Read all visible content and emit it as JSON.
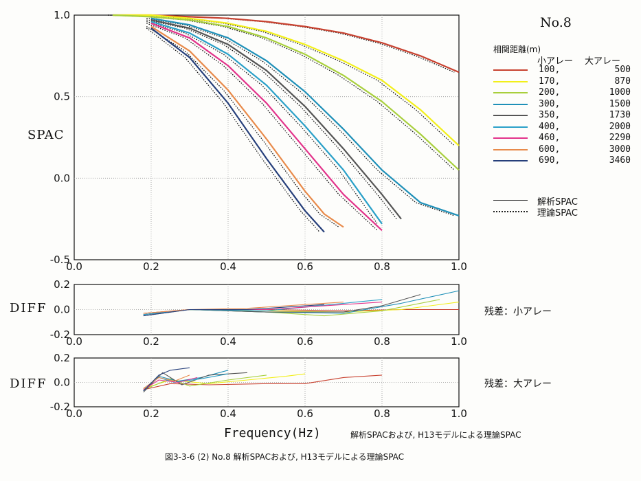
{
  "panel_id": "No.8",
  "legend": {
    "title": "相関距離(m)",
    "col_small": "小アレー",
    "col_large": "大アレー",
    "entries": [
      {
        "small": "100,",
        "large": "500",
        "color": "#c8412f"
      },
      {
        "small": "170,",
        "large": "870",
        "color": "#f2ef1a"
      },
      {
        "small": "200,",
        "large": "1000",
        "color": "#a8cf3c"
      },
      {
        "small": "300,",
        "large": "1500",
        "color": "#1f90b8"
      },
      {
        "small": "350,",
        "large": "1730",
        "color": "#555555"
      },
      {
        "small": "400,",
        "large": "2000",
        "color": "#2aa0c8"
      },
      {
        "small": "460,",
        "large": "2290",
        "color": "#e2328a"
      },
      {
        "small": "600,",
        "large": "3000",
        "color": "#e88a4a"
      },
      {
        "small": "690,",
        "large": "3460",
        "color": "#263f7a"
      }
    ],
    "analysis_label": "解析SPAC",
    "theory_label": "理論SPAC"
  },
  "residual_small_label": "残差：小アレー",
  "residual_large_label": "残差：大アレー",
  "xlabel": "Frequency(Hz)",
  "inline_caption": "解析SPACおよび, H13モデルによる理論SPAC",
  "figure_caption": "図3-3-6 (2) No.8 解析SPACおよび, H13モデルによる理論SPAC",
  "chart_data": [
    {
      "type": "line",
      "ylabel": "SPAC",
      "xlim": [
        0.0,
        1.0
      ],
      "ylim": [
        -0.5,
        1.0
      ],
      "xticks": [
        "0.0",
        "0.2",
        "0.4",
        "0.6",
        "0.8",
        "1.0"
      ],
      "yticks": [
        "-0.5",
        "0.0",
        "0.5",
        "1.0"
      ],
      "grid": "dotted",
      "series": [
        {
          "name": "100, 500",
          "color": "#c8412f",
          "x": [
            0.1,
            0.2,
            0.3,
            0.4,
            0.5,
            0.6,
            0.7,
            0.8,
            0.9,
            1.0
          ],
          "y": [
            1.0,
            1.0,
            0.99,
            0.98,
            0.96,
            0.93,
            0.89,
            0.83,
            0.75,
            0.65
          ]
        },
        {
          "name": "170, 870",
          "color": "#f2ef1a",
          "x": [
            0.1,
            0.2,
            0.3,
            0.4,
            0.5,
            0.6,
            0.7,
            0.8,
            0.9,
            1.0
          ],
          "y": [
            1.0,
            1.0,
            0.98,
            0.95,
            0.9,
            0.82,
            0.72,
            0.6,
            0.42,
            0.2
          ]
        },
        {
          "name": "200, 1000",
          "color": "#a8cf3c",
          "x": [
            0.1,
            0.2,
            0.3,
            0.4,
            0.5,
            0.6,
            0.7,
            0.8,
            0.9,
            1.0
          ],
          "y": [
            1.0,
            0.99,
            0.97,
            0.93,
            0.86,
            0.76,
            0.63,
            0.47,
            0.27,
            0.05
          ]
        },
        {
          "name": "300, 1500",
          "color": "#1f90b8",
          "x": [
            0.2,
            0.3,
            0.4,
            0.5,
            0.6,
            0.7,
            0.8,
            0.9,
            1.0
          ],
          "y": [
            0.98,
            0.94,
            0.86,
            0.72,
            0.53,
            0.3,
            0.05,
            -0.15,
            -0.23
          ]
        },
        {
          "name": "350, 1730",
          "color": "#555555",
          "x": [
            0.2,
            0.3,
            0.4,
            0.5,
            0.6,
            0.7,
            0.8,
            0.85
          ],
          "y": [
            0.97,
            0.92,
            0.82,
            0.66,
            0.44,
            0.18,
            -0.1,
            -0.25
          ]
        },
        {
          "name": "400, 2000",
          "color": "#2aa0c8",
          "x": [
            0.2,
            0.3,
            0.4,
            0.5,
            0.6,
            0.7,
            0.8
          ],
          "y": [
            0.96,
            0.89,
            0.76,
            0.57,
            0.32,
            0.05,
            -0.28
          ]
        },
        {
          "name": "460, 2290",
          "color": "#e2328a",
          "x": [
            0.2,
            0.3,
            0.4,
            0.5,
            0.6,
            0.7,
            0.8
          ],
          "y": [
            0.95,
            0.86,
            0.69,
            0.46,
            0.18,
            -0.1,
            -0.32
          ]
        },
        {
          "name": "600, 3000",
          "color": "#e88a4a",
          "x": [
            0.2,
            0.3,
            0.4,
            0.5,
            0.6,
            0.65,
            0.7
          ],
          "y": [
            0.93,
            0.78,
            0.54,
            0.24,
            -0.08,
            -0.22,
            -0.3
          ]
        },
        {
          "name": "690, 3460",
          "color": "#263f7a",
          "x": [
            0.2,
            0.3,
            0.4,
            0.5,
            0.6,
            0.65
          ],
          "y": [
            0.92,
            0.74,
            0.46,
            0.12,
            -0.2,
            -0.33
          ]
        }
      ]
    },
    {
      "type": "line",
      "ylabel": "DIFF",
      "xlim": [
        0.0,
        1.0
      ],
      "ylim": [
        -0.2,
        0.2
      ],
      "xticks": [
        "0.0",
        "0.2",
        "0.4",
        "0.6",
        "0.8",
        "1.0"
      ],
      "yticks": [
        "-0.2",
        "0.0",
        "0.2"
      ],
      "grid": "dotted",
      "series": [
        {
          "name": "100, 500",
          "color": "#c8412f",
          "x": [
            0.18,
            0.3,
            0.5,
            0.7,
            0.85,
            1.0
          ],
          "y": [
            -0.04,
            0.0,
            0.0,
            -0.01,
            0.0,
            0.0
          ]
        },
        {
          "name": "170, 870",
          "color": "#f2ef1a",
          "x": [
            0.18,
            0.3,
            0.5,
            0.7,
            0.85,
            1.0
          ],
          "y": [
            -0.03,
            0.0,
            -0.01,
            -0.02,
            0.0,
            0.06
          ]
        },
        {
          "name": "200, 1000",
          "color": "#a8cf3c",
          "x": [
            0.18,
            0.3,
            0.5,
            0.65,
            0.8,
            0.95
          ],
          "y": [
            -0.03,
            0.0,
            -0.02,
            -0.05,
            -0.01,
            0.08
          ]
        },
        {
          "name": "300, 1500",
          "color": "#1f90b8",
          "x": [
            0.18,
            0.3,
            0.5,
            0.7,
            0.85,
            1.0
          ],
          "y": [
            -0.04,
            0.0,
            -0.02,
            -0.03,
            0.05,
            0.15
          ]
        },
        {
          "name": "350, 1730",
          "color": "#555555",
          "x": [
            0.18,
            0.3,
            0.5,
            0.7,
            0.8,
            0.9
          ],
          "y": [
            -0.05,
            0.0,
            -0.02,
            -0.02,
            0.03,
            0.12
          ]
        },
        {
          "name": "400, 2000",
          "color": "#2aa0c8",
          "x": [
            0.18,
            0.3,
            0.5,
            0.6,
            0.7,
            0.8
          ],
          "y": [
            -0.04,
            0.0,
            -0.01,
            0.02,
            0.05,
            0.08
          ]
        },
        {
          "name": "460, 2290",
          "color": "#e2328a",
          "x": [
            0.18,
            0.3,
            0.5,
            0.6,
            0.7,
            0.8
          ],
          "y": [
            -0.03,
            0.0,
            0.0,
            0.02,
            0.04,
            0.06
          ]
        },
        {
          "name": "600, 3000",
          "color": "#e88a4a",
          "x": [
            0.18,
            0.3,
            0.45,
            0.55,
            0.65,
            0.7
          ],
          "y": [
            -0.03,
            0.0,
            0.01,
            0.03,
            0.05,
            0.06
          ]
        },
        {
          "name": "690, 3460",
          "color": "#263f7a",
          "x": [
            0.18,
            0.3,
            0.45,
            0.55,
            0.65
          ],
          "y": [
            -0.05,
            0.0,
            0.0,
            0.02,
            0.04
          ]
        }
      ]
    },
    {
      "type": "line",
      "ylabel": "DIFF",
      "xlim": [
        0.0,
        1.0
      ],
      "ylim": [
        -0.2,
        0.2
      ],
      "xticks": [
        "0.0",
        "0.2",
        "0.4",
        "0.6",
        "0.8",
        "1.0"
      ],
      "yticks": [
        "-0.2",
        "0.0",
        "0.2"
      ],
      "grid": "dotted",
      "series": [
        {
          "name": "100, 500",
          "color": "#c8412f",
          "x": [
            0.18,
            0.25,
            0.35,
            0.5,
            0.6,
            0.7,
            0.8
          ],
          "y": [
            -0.06,
            -0.01,
            -0.02,
            -0.01,
            -0.01,
            0.04,
            0.06
          ]
        },
        {
          "name": "170, 870",
          "color": "#f2ef1a",
          "x": [
            0.18,
            0.25,
            0.35,
            0.45,
            0.55,
            0.6
          ],
          "y": [
            -0.05,
            0.02,
            -0.01,
            0.02,
            0.05,
            0.07
          ]
        },
        {
          "name": "200, 1000",
          "color": "#a8cf3c",
          "x": [
            0.18,
            0.25,
            0.3,
            0.4,
            0.5
          ],
          "y": [
            -0.06,
            0.03,
            -0.03,
            0.02,
            0.06
          ]
        },
        {
          "name": "300, 1500",
          "color": "#1f90b8",
          "x": [
            0.18,
            0.22,
            0.27,
            0.33,
            0.4
          ],
          "y": [
            -0.07,
            0.05,
            0.01,
            0.04,
            0.1
          ]
        },
        {
          "name": "350, 1730",
          "color": "#555555",
          "x": [
            0.18,
            0.23,
            0.28,
            0.35,
            0.45
          ],
          "y": [
            -0.08,
            0.08,
            -0.02,
            0.06,
            0.08
          ]
        },
        {
          "name": "400, 2000",
          "color": "#2aa0c8",
          "x": [
            0.18,
            0.22,
            0.26,
            0.33,
            0.4
          ],
          "y": [
            -0.05,
            0.04,
            0.0,
            0.03,
            0.07
          ]
        },
        {
          "name": "460, 2290",
          "color": "#e2328a",
          "x": [
            0.18,
            0.22,
            0.27,
            0.32
          ],
          "y": [
            -0.06,
            0.02,
            0.0,
            0.04
          ]
        },
        {
          "name": "600, 3000",
          "color": "#e88a4a",
          "x": [
            0.18,
            0.22,
            0.26,
            0.3
          ],
          "y": [
            -0.05,
            0.04,
            0.01,
            0.06
          ]
        },
        {
          "name": "690, 3460",
          "color": "#263f7a",
          "x": [
            0.18,
            0.22,
            0.25,
            0.3
          ],
          "y": [
            -0.07,
            0.06,
            0.1,
            0.12
          ]
        }
      ]
    }
  ]
}
